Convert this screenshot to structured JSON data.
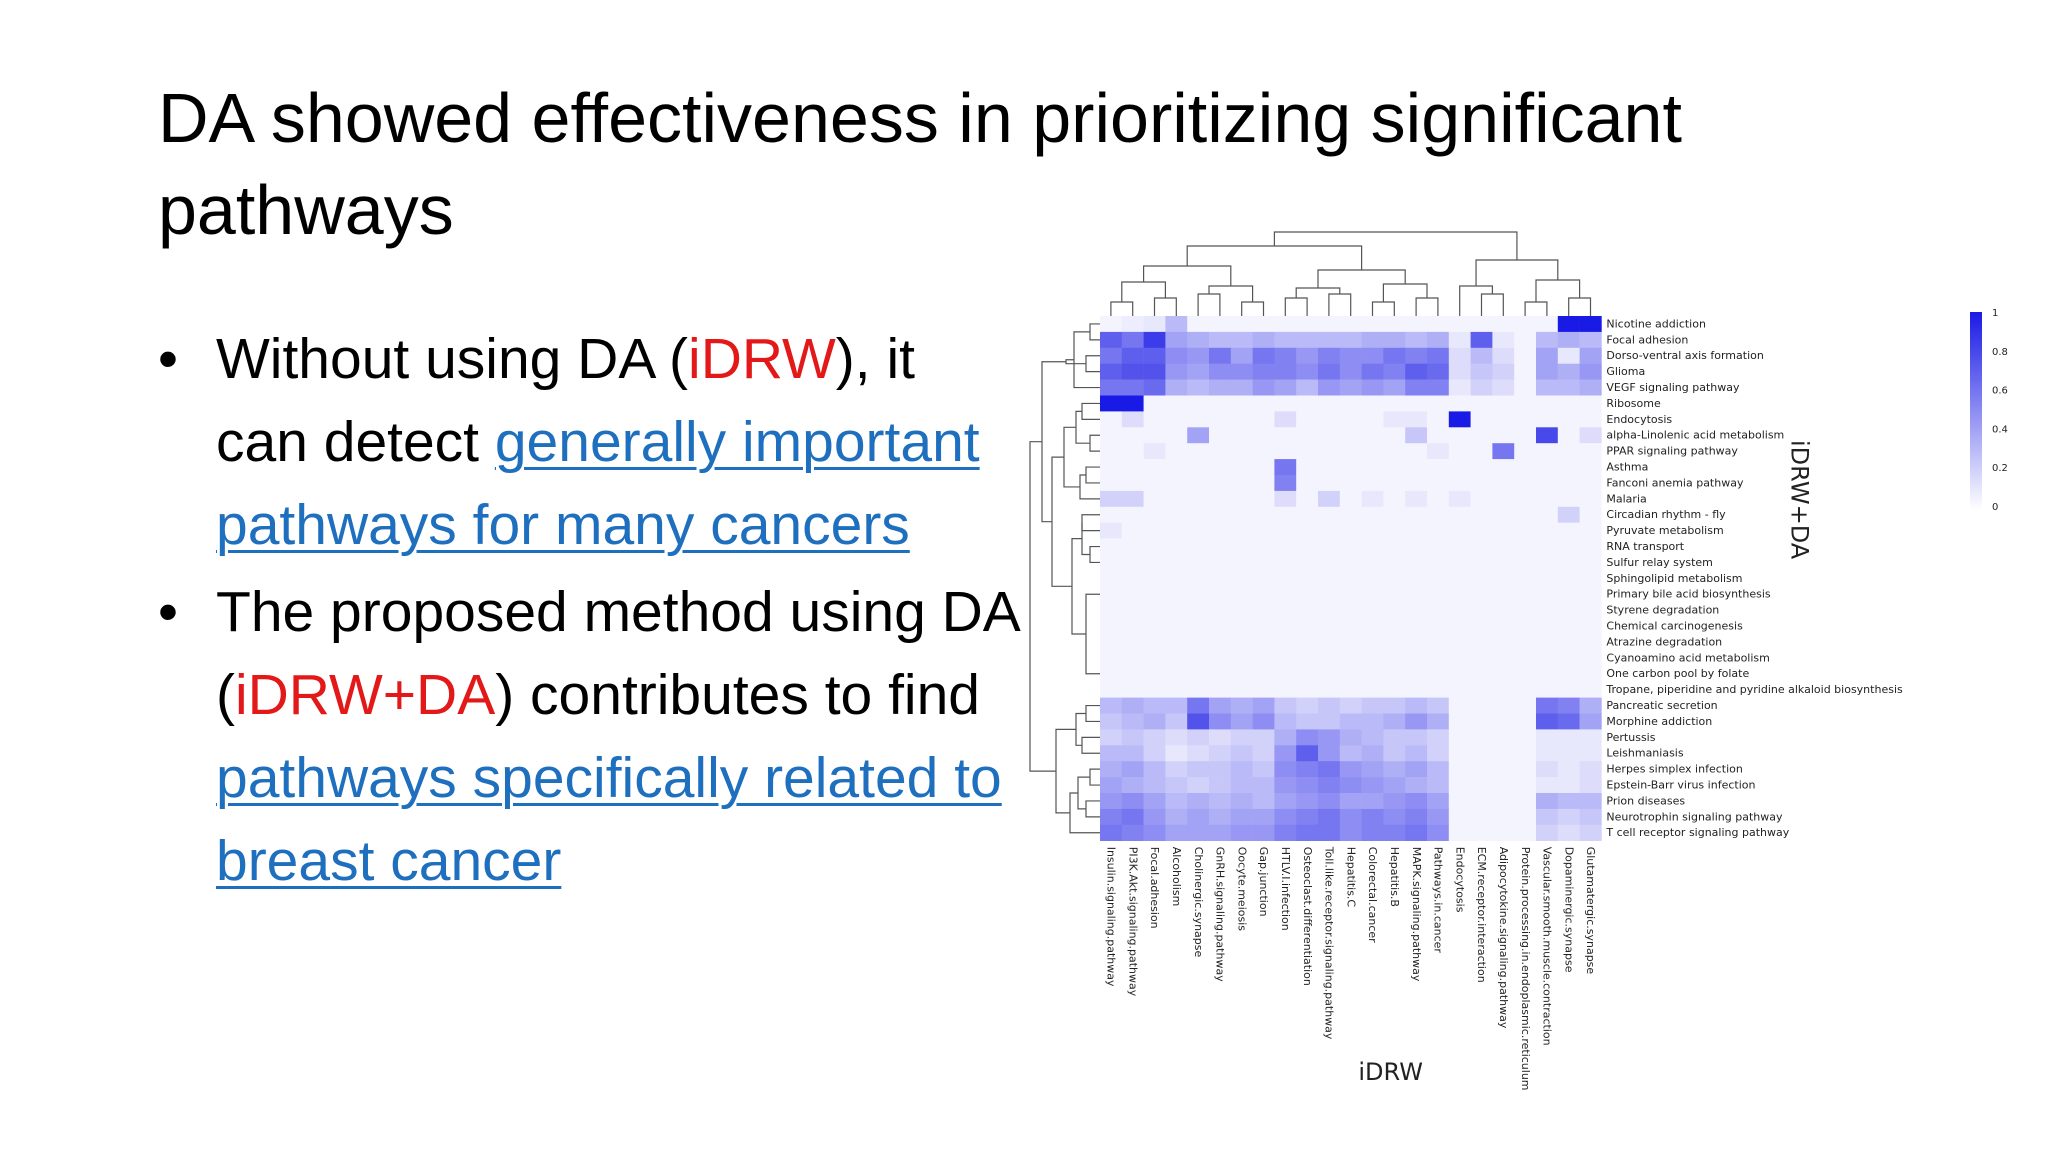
{
  "slide": {
    "title": "DA showed effectiveness in prioritizing significant pathways",
    "bullets": [
      {
        "parts": [
          {
            "text": "Without using DA (",
            "style": "plain"
          },
          {
            "text": "iDRW",
            "style": "red"
          },
          {
            "text": "), it can detect ",
            "style": "plain"
          },
          {
            "text": "generally important pathways for many cancers",
            "style": "link"
          }
        ]
      },
      {
        "parts": [
          {
            "text": "The proposed method using DA (",
            "style": "plain"
          },
          {
            "text": "iDRW+DA",
            "style": "red"
          },
          {
            "text": ") contributes to find ",
            "style": "plain"
          },
          {
            "text": "pathways specifically related to breast cancer",
            "style": "link"
          }
        ]
      }
    ],
    "bullet_symbol": "•"
  },
  "colors": {
    "accent_red": "#e31919",
    "link_blue": "#1f6fbf",
    "heat_max": "#1a1ae6"
  },
  "chart_data": {
    "type": "heatmap",
    "xlabel": "iDRW",
    "ylabel": "iDRW+DA",
    "columns": [
      "Insulin.signaling.pathway",
      "PI3K.Akt.signaling.pathway",
      "Focal.adhesion",
      "Alcoholism",
      "Cholinergic.synapse",
      "GnRH.signaling.pathway",
      "Oocyte.meiosis",
      "Gap.junction",
      "HTLV.I.infection",
      "Osteoclast.differentiation",
      "Toll.like.receptor.signaling.pathway",
      "Hepatitis.C",
      "Colorectal.cancer",
      "Hepatitis.B",
      "MAPK.signaling.pathway",
      "Pathways.in.cancer",
      "Endocytosis",
      "ECM.receptor.interaction",
      "Adipocytokine.signaling.pathway",
      "Protein.processing.in.endoplasmic.reticulum",
      "Vascular.smooth.muscle.contraction",
      "Dopaminergic.synapse",
      "Glutamatergic.synapse"
    ],
    "rows": [
      "Nicotine addiction",
      "Focal adhesion",
      "Dorso-ventral axis formation",
      "Glioma",
      "VEGF signaling pathway",
      "Ribosome",
      "Endocytosis",
      "alpha-Linolenic acid metabolism",
      "PPAR signaling pathway",
      "Asthma",
      "Fanconi anemia pathway",
      "Malaria",
      "Circadian rhythm - fly",
      "Pyruvate metabolism",
      "RNA transport",
      "Sulfur relay system",
      "Sphingolipid metabolism",
      "Primary bile acid biosynthesis",
      "Styrene degradation",
      "Chemical carcinogenesis",
      "Atrazine degradation",
      "Cyanoamino acid metabolism",
      "One carbon pool by folate",
      "Tropane, piperidine and pyridine alkaloid biosynthesis",
      "Pancreatic secretion",
      "Morphine addiction",
      "Pertussis",
      "Leishmaniasis",
      "Herpes simplex infection",
      "Epstein-Barr virus infection",
      "Prion diseases",
      "Neurotrophin signaling pathway",
      "T cell receptor signaling pathway"
    ],
    "values": [
      [
        0.05,
        0.08,
        0.1,
        0.3,
        0.05,
        0.05,
        0.05,
        0.05,
        0.05,
        0.05,
        0.05,
        0.05,
        0.05,
        0.05,
        0.05,
        0.05,
        0.05,
        0.05,
        0.05,
        0.05,
        0.05,
        1.0,
        1.0
      ],
      [
        0.7,
        0.6,
        0.85,
        0.4,
        0.35,
        0.3,
        0.3,
        0.35,
        0.3,
        0.3,
        0.3,
        0.3,
        0.35,
        0.35,
        0.3,
        0.35,
        0.1,
        0.7,
        0.1,
        0.05,
        0.3,
        0.35,
        0.3
      ],
      [
        0.6,
        0.7,
        0.7,
        0.5,
        0.45,
        0.6,
        0.4,
        0.6,
        0.55,
        0.45,
        0.55,
        0.5,
        0.5,
        0.6,
        0.55,
        0.6,
        0.15,
        0.3,
        0.15,
        0.05,
        0.4,
        0.1,
        0.4
      ],
      [
        0.7,
        0.75,
        0.75,
        0.45,
        0.4,
        0.5,
        0.5,
        0.55,
        0.55,
        0.5,
        0.6,
        0.5,
        0.6,
        0.55,
        0.7,
        0.65,
        0.15,
        0.25,
        0.2,
        0.05,
        0.4,
        0.35,
        0.45
      ],
      [
        0.6,
        0.6,
        0.65,
        0.35,
        0.3,
        0.35,
        0.35,
        0.45,
        0.4,
        0.3,
        0.45,
        0.4,
        0.45,
        0.4,
        0.55,
        0.55,
        0.1,
        0.2,
        0.15,
        0.05,
        0.3,
        0.3,
        0.35
      ],
      [
        1.0,
        1.0,
        0.05,
        0.05,
        0.05,
        0.05,
        0.05,
        0.05,
        0.05,
        0.05,
        0.05,
        0.05,
        0.05,
        0.05,
        0.05,
        0.05,
        0.05,
        0.05,
        0.05,
        0.05,
        0.05,
        0.05,
        0.05
      ],
      [
        0.05,
        0.15,
        0.05,
        0.05,
        0.05,
        0.05,
        0.05,
        0.05,
        0.15,
        0.05,
        0.05,
        0.05,
        0.05,
        0.1,
        0.1,
        0.05,
        1.0,
        0.05,
        0.05,
        0.05,
        0.05,
        0.05,
        0.05
      ],
      [
        0.05,
        0.05,
        0.05,
        0.05,
        0.4,
        0.05,
        0.05,
        0.05,
        0.05,
        0.05,
        0.05,
        0.05,
        0.05,
        0.05,
        0.25,
        0.05,
        0.05,
        0.05,
        0.05,
        0.05,
        0.8,
        0.05,
        0.15
      ],
      [
        0.05,
        0.05,
        0.1,
        0.05,
        0.05,
        0.05,
        0.05,
        0.05,
        0.05,
        0.05,
        0.05,
        0.05,
        0.05,
        0.05,
        0.05,
        0.1,
        0.05,
        0.05,
        0.6,
        0.05,
        0.05,
        0.05,
        0.05
      ],
      [
        0.05,
        0.05,
        0.05,
        0.05,
        0.05,
        0.05,
        0.05,
        0.05,
        0.6,
        0.05,
        0.05,
        0.05,
        0.05,
        0.05,
        0.05,
        0.05,
        0.05,
        0.05,
        0.05,
        0.05,
        0.05,
        0.05,
        0.05
      ],
      [
        0.05,
        0.05,
        0.05,
        0.05,
        0.05,
        0.05,
        0.05,
        0.05,
        0.55,
        0.05,
        0.05,
        0.05,
        0.05,
        0.05,
        0.05,
        0.05,
        0.05,
        0.05,
        0.05,
        0.05,
        0.05,
        0.05,
        0.05
      ],
      [
        0.2,
        0.2,
        0.05,
        0.05,
        0.05,
        0.05,
        0.05,
        0.05,
        0.15,
        0.05,
        0.2,
        0.05,
        0.1,
        0.05,
        0.1,
        0.05,
        0.1,
        0.05,
        0.05,
        0.05,
        0.05,
        0.05,
        0.05
      ],
      [
        0.05,
        0.05,
        0.05,
        0.05,
        0.05,
        0.05,
        0.05,
        0.05,
        0.05,
        0.05,
        0.05,
        0.05,
        0.05,
        0.05,
        0.05,
        0.05,
        0.05,
        0.05,
        0.05,
        0.05,
        0.05,
        0.2,
        0.05
      ],
      [
        0.1,
        0.05,
        0.05,
        0.05,
        0.05,
        0.05,
        0.05,
        0.05,
        0.05,
        0.05,
        0.05,
        0.05,
        0.05,
        0.05,
        0.05,
        0.05,
        0.05,
        0.05,
        0.05,
        0.05,
        0.05,
        0.05,
        0.05
      ],
      [
        0.05,
        0.05,
        0.05,
        0.05,
        0.05,
        0.05,
        0.05,
        0.05,
        0.05,
        0.05,
        0.05,
        0.05,
        0.05,
        0.05,
        0.05,
        0.05,
        0.05,
        0.05,
        0.05,
        0.05,
        0.05,
        0.05,
        0.05
      ],
      [
        0.05,
        0.05,
        0.05,
        0.05,
        0.05,
        0.05,
        0.05,
        0.05,
        0.05,
        0.05,
        0.05,
        0.05,
        0.05,
        0.05,
        0.05,
        0.05,
        0.05,
        0.05,
        0.05,
        0.05,
        0.05,
        0.05,
        0.05
      ],
      [
        0.05,
        0.05,
        0.05,
        0.05,
        0.05,
        0.05,
        0.05,
        0.05,
        0.05,
        0.05,
        0.05,
        0.05,
        0.05,
        0.05,
        0.05,
        0.05,
        0.05,
        0.05,
        0.05,
        0.05,
        0.05,
        0.05,
        0.05
      ],
      [
        0.05,
        0.05,
        0.05,
        0.05,
        0.05,
        0.05,
        0.05,
        0.05,
        0.05,
        0.05,
        0.05,
        0.05,
        0.05,
        0.05,
        0.05,
        0.05,
        0.05,
        0.05,
        0.05,
        0.05,
        0.05,
        0.05,
        0.05
      ],
      [
        0.05,
        0.05,
        0.05,
        0.05,
        0.05,
        0.05,
        0.05,
        0.05,
        0.05,
        0.05,
        0.05,
        0.05,
        0.05,
        0.05,
        0.05,
        0.05,
        0.05,
        0.05,
        0.05,
        0.05,
        0.05,
        0.05,
        0.05
      ],
      [
        0.05,
        0.05,
        0.05,
        0.05,
        0.05,
        0.05,
        0.05,
        0.05,
        0.05,
        0.05,
        0.05,
        0.05,
        0.05,
        0.05,
        0.05,
        0.05,
        0.05,
        0.05,
        0.05,
        0.05,
        0.05,
        0.05,
        0.05
      ],
      [
        0.05,
        0.05,
        0.05,
        0.05,
        0.05,
        0.05,
        0.05,
        0.05,
        0.05,
        0.05,
        0.05,
        0.05,
        0.05,
        0.05,
        0.05,
        0.05,
        0.05,
        0.05,
        0.05,
        0.05,
        0.05,
        0.05,
        0.05
      ],
      [
        0.05,
        0.05,
        0.05,
        0.05,
        0.05,
        0.05,
        0.05,
        0.05,
        0.05,
        0.05,
        0.05,
        0.05,
        0.05,
        0.05,
        0.05,
        0.05,
        0.05,
        0.05,
        0.05,
        0.05,
        0.05,
        0.05,
        0.05
      ],
      [
        0.05,
        0.05,
        0.05,
        0.05,
        0.05,
        0.05,
        0.05,
        0.05,
        0.05,
        0.05,
        0.05,
        0.05,
        0.05,
        0.05,
        0.05,
        0.05,
        0.05,
        0.05,
        0.05,
        0.05,
        0.05,
        0.05,
        0.05
      ],
      [
        0.05,
        0.05,
        0.05,
        0.05,
        0.05,
        0.05,
        0.05,
        0.05,
        0.05,
        0.05,
        0.05,
        0.05,
        0.05,
        0.05,
        0.05,
        0.05,
        0.05,
        0.05,
        0.05,
        0.05,
        0.05,
        0.05,
        0.05
      ],
      [
        0.3,
        0.35,
        0.3,
        0.3,
        0.6,
        0.4,
        0.35,
        0.4,
        0.25,
        0.2,
        0.25,
        0.2,
        0.25,
        0.25,
        0.3,
        0.25,
        0.05,
        0.05,
        0.05,
        0.05,
        0.6,
        0.55,
        0.35
      ],
      [
        0.25,
        0.3,
        0.35,
        0.25,
        0.75,
        0.5,
        0.4,
        0.5,
        0.3,
        0.25,
        0.25,
        0.3,
        0.3,
        0.35,
        0.45,
        0.35,
        0.05,
        0.05,
        0.05,
        0.05,
        0.7,
        0.65,
        0.4
      ],
      [
        0.2,
        0.25,
        0.2,
        0.15,
        0.2,
        0.15,
        0.2,
        0.2,
        0.35,
        0.5,
        0.45,
        0.35,
        0.3,
        0.25,
        0.25,
        0.2,
        0.05,
        0.05,
        0.05,
        0.05,
        0.1,
        0.1,
        0.1
      ],
      [
        0.3,
        0.3,
        0.2,
        0.1,
        0.15,
        0.2,
        0.25,
        0.2,
        0.45,
        0.7,
        0.45,
        0.3,
        0.35,
        0.25,
        0.3,
        0.2,
        0.05,
        0.05,
        0.05,
        0.05,
        0.1,
        0.1,
        0.1
      ],
      [
        0.35,
        0.4,
        0.3,
        0.2,
        0.25,
        0.25,
        0.3,
        0.25,
        0.5,
        0.55,
        0.6,
        0.45,
        0.4,
        0.35,
        0.4,
        0.3,
        0.05,
        0.05,
        0.05,
        0.05,
        0.15,
        0.1,
        0.15
      ],
      [
        0.4,
        0.35,
        0.3,
        0.25,
        0.2,
        0.25,
        0.3,
        0.3,
        0.45,
        0.5,
        0.55,
        0.5,
        0.45,
        0.4,
        0.35,
        0.3,
        0.05,
        0.05,
        0.05,
        0.05,
        0.1,
        0.1,
        0.15
      ],
      [
        0.45,
        0.5,
        0.4,
        0.3,
        0.35,
        0.3,
        0.35,
        0.3,
        0.4,
        0.45,
        0.5,
        0.4,
        0.4,
        0.45,
        0.5,
        0.4,
        0.05,
        0.05,
        0.05,
        0.05,
        0.35,
        0.3,
        0.3
      ],
      [
        0.55,
        0.6,
        0.45,
        0.35,
        0.4,
        0.35,
        0.4,
        0.4,
        0.5,
        0.55,
        0.6,
        0.5,
        0.55,
        0.5,
        0.55,
        0.45,
        0.05,
        0.05,
        0.05,
        0.05,
        0.25,
        0.2,
        0.25
      ],
      [
        0.6,
        0.55,
        0.5,
        0.4,
        0.4,
        0.4,
        0.45,
        0.45,
        0.55,
        0.6,
        0.6,
        0.5,
        0.55,
        0.55,
        0.6,
        0.5,
        0.05,
        0.05,
        0.05,
        0.05,
        0.2,
        0.15,
        0.2
      ]
    ],
    "colorbar": {
      "ticks": [
        "1",
        "0.8",
        "0.6",
        "0.4",
        "0.2",
        "0"
      ],
      "range": [
        0,
        1
      ]
    },
    "has_row_dendrogram": true,
    "has_column_dendrogram": true
  }
}
